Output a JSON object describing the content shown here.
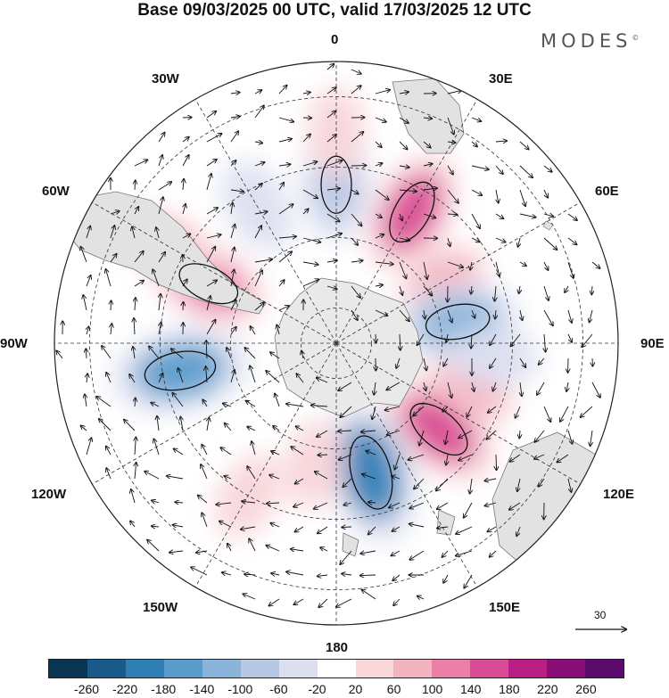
{
  "header": {
    "title": "Base 09/03/2025 00 UTC, valid 17/03/2025 12 UTC",
    "brand": "MODES",
    "brand_mark": "©"
  },
  "map": {
    "projection": "south-polar-stereographic",
    "longitude_labels": [
      "0",
      "30E",
      "60E",
      "90E",
      "120E",
      "150E",
      "180",
      "150W",
      "120W",
      "90W",
      "60W",
      "30W"
    ],
    "reference_vector": "30",
    "anomalies": [
      {
        "lon": 30,
        "lat": -47,
        "value": 150
      },
      {
        "lon": 60,
        "lat": -55,
        "value": 60
      },
      {
        "lon": 80,
        "lat": -55,
        "value": -140
      },
      {
        "lon": 110,
        "lat": -50,
        "value": 60
      },
      {
        "lon": 130,
        "lat": -52,
        "value": 160
      },
      {
        "lon": 165,
        "lat": -52,
        "value": -200
      },
      {
        "lon": 95,
        "lat": -45,
        "value": -40
      },
      {
        "lon": -100,
        "lat": -45,
        "value": -180
      },
      {
        "lon": -65,
        "lat": -50,
        "value": 130
      },
      {
        "lon": -60,
        "lat": -35,
        "value": 60
      },
      {
        "lon": -30,
        "lat": -45,
        "value": -60
      },
      {
        "lon": 0,
        "lat": -45,
        "value": -100
      },
      {
        "lon": 0,
        "lat": -30,
        "value": 40
      },
      {
        "lon": -150,
        "lat": -40,
        "value": 40
      },
      {
        "lon": -170,
        "lat": -55,
        "value": 40
      }
    ]
  },
  "colorbar": {
    "tick_labels": [
      "-260",
      "-220",
      "-180",
      "-140",
      "-100",
      "-60",
      "-20",
      "20",
      "60",
      "100",
      "140",
      "180",
      "220",
      "260"
    ],
    "colors": [
      "#0a3552",
      "#1a5a8a",
      "#2f7fb6",
      "#5a9ccb",
      "#8ab4d9",
      "#b7c6e3",
      "#dcdff0",
      "#ffffff",
      "#f8d6da",
      "#f2b3c0",
      "#ea7fa8",
      "#d94b94",
      "#b81e84",
      "#8a0e78",
      "#5a0b6b"
    ]
  }
}
